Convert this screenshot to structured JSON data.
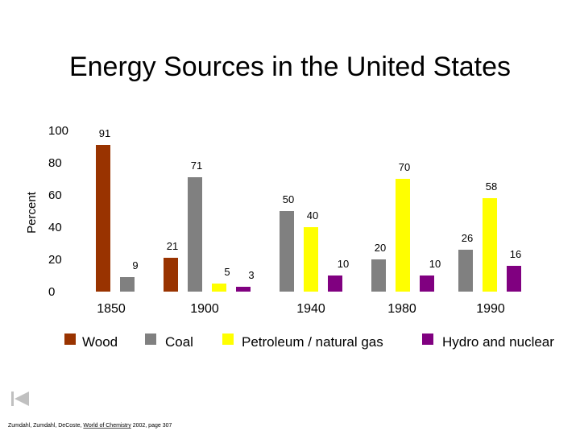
{
  "chart_data": {
    "type": "bar",
    "title": "Energy Sources in the United States",
    "xlabel": "",
    "ylabel": "Percent",
    "ylim": [
      0,
      100
    ],
    "yticks": [
      "0",
      "20",
      "40",
      "60",
      "80",
      "100"
    ],
    "categories": [
      "1850",
      "1900",
      "1940",
      "1980",
      "1990"
    ],
    "series": [
      {
        "name": "Wood",
        "color": "#993300",
        "values": [
          91,
          21,
          null,
          null,
          null
        ]
      },
      {
        "name": "Coal",
        "color": "#808080",
        "values": [
          9,
          71,
          50,
          20,
          26
        ]
      },
      {
        "name": "Petroleum / natural gas",
        "color": "#ffff00",
        "values": [
          null,
          5,
          40,
          70,
          58
        ]
      },
      {
        "name": "Hydro and nuclear",
        "color": "#800080",
        "values": [
          null,
          3,
          10,
          10,
          16
        ]
      }
    ],
    "legend_position": "bottom",
    "grid": false
  },
  "footer": {
    "authors": "Zumdahl, Zumdahl, DeCoste, ",
    "book": "World of Chemistry",
    "details": " 2002, page 307"
  },
  "nav": {
    "icon": "skip-back-icon"
  }
}
